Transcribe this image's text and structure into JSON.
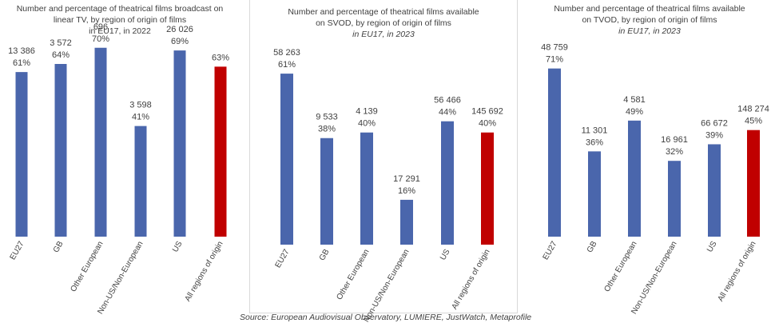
{
  "chart_data": [
    {
      "type": "bar",
      "title": "Number and percentage of theatrical films broadcast on linear TV, by region of origin of films in EU17, in 2022",
      "title_lines": [
        "Number and percentage of theatrical films broadcast on",
        "linear TV, by region of origin of films",
        "in EU17, in 2022"
      ],
      "title_italic_lines": [],
      "categories": [
        "EU27",
        "GB",
        "Other European",
        "Non-US/Non-European",
        "US",
        "All regions of origin"
      ],
      "counts": [
        "13 386",
        "3 572",
        "696",
        "3 598",
        "26 026",
        ""
      ],
      "percent_labels": [
        "61%",
        "64%",
        "70%",
        "41%",
        "69%",
        "63%"
      ],
      "values": [
        61,
        64,
        70,
        41,
        69,
        63
      ],
      "ylim": [
        0,
        80
      ],
      "colors": [
        "#4a66ac",
        "#4a66ac",
        "#4a66ac",
        "#4a66ac",
        "#4a66ac",
        "#c00000"
      ]
    },
    {
      "type": "bar",
      "title": "Number and percentage of theatrical films available on SVOD, by region of origin of films in EU17, in 2023",
      "title_lines": [
        "Number and percentage of theatrical films available",
        "on SVOD, by region of origin of films"
      ],
      "title_italic_lines": [
        "in EU17, in 2023"
      ],
      "categories": [
        "EU27",
        "GB",
        "Other European",
        "Non-US/Non-European",
        "US",
        "All regions of origin"
      ],
      "counts": [
        "58 263",
        "9 533",
        "4 139",
        "17 291",
        "56 466",
        "145 692"
      ],
      "percent_labels": [
        "61%",
        "38%",
        "40%",
        "16%",
        "44%",
        "40%"
      ],
      "values": [
        61,
        38,
        40,
        16,
        44,
        40
      ],
      "ylim": [
        0,
        75
      ],
      "colors": [
        "#4a66ac",
        "#4a66ac",
        "#4a66ac",
        "#4a66ac",
        "#4a66ac",
        "#c00000"
      ]
    },
    {
      "type": "bar",
      "title": "Number and percentage of theatrical films available on TVOD, by region of origin of films in EU17, in 2023",
      "title_lines": [
        "Number and percentage of theatrical films available",
        "on TVOD, by region of origin of films"
      ],
      "title_italic_lines": [
        "in EU17, in 2023"
      ],
      "categories": [
        "EU27",
        "GB",
        "Other European",
        "Non-US/Non-European",
        "US",
        "All regions of origin"
      ],
      "counts": [
        "48 759",
        "11 301",
        "4 581",
        "16 961",
        "66 672",
        "148 274"
      ],
      "percent_labels": [
        "71%",
        "36%",
        "49%",
        "32%",
        "39%",
        "45%"
      ],
      "values": [
        71,
        36,
        49,
        32,
        39,
        45
      ],
      "ylim": [
        0,
        80
      ],
      "colors": [
        "#4a66ac",
        "#4a66ac",
        "#4a66ac",
        "#4a66ac",
        "#4a66ac",
        "#c00000"
      ]
    }
  ],
  "source": "Source: European Audiovisual Observatory, LUMIERE, JustWatch, Metaprofile"
}
